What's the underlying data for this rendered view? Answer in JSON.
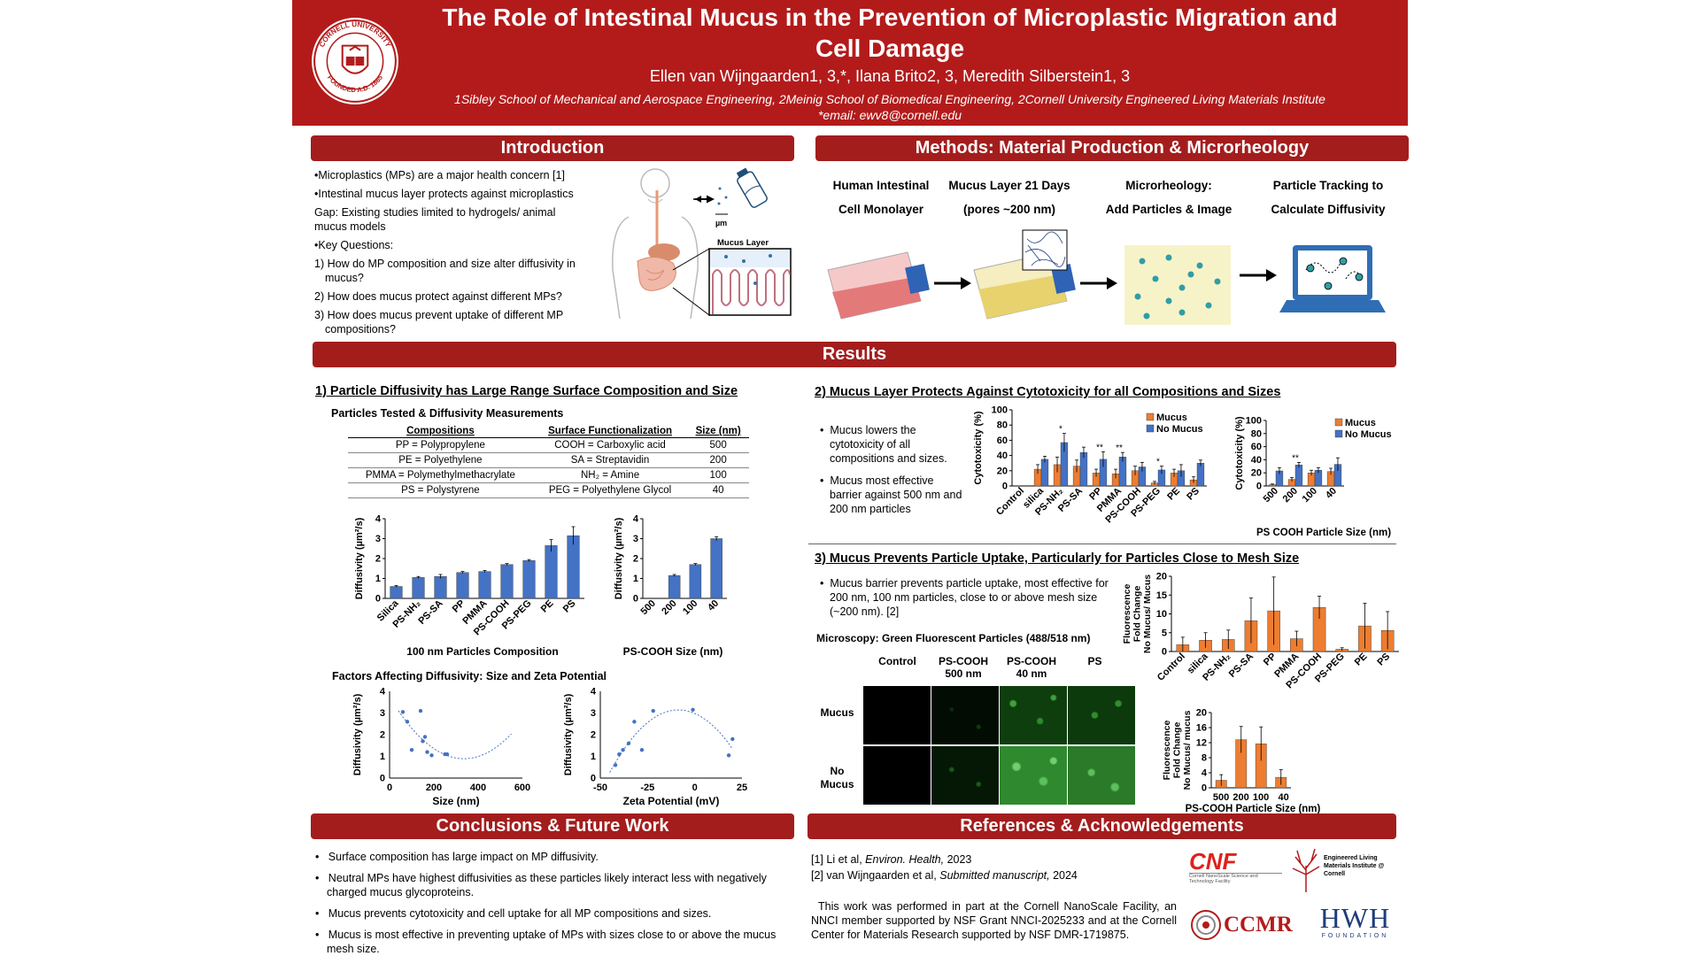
{
  "header": {
    "title_line1": "The Role of Intestinal Mucus in the Prevention of Microplastic Migration and",
    "title_line2": "Cell Damage",
    "authors": "Ellen van Wijngaarden1, 3,*, Ilana Brito2, 3, Meredith Silberstein1, 3",
    "affiliations": "1Sibley School of Mechanical and Aerospace Engineering, 2Meinig School of Biomedical Engineering, 2Cornell University Engineered Living Materials Institute",
    "email": "*email: ewv8@cornell.edu",
    "seal_text_top": "CORNELL UNIVERSITY",
    "seal_text_bottom": "FOUNDED A.D. 1865"
  },
  "intro": {
    "banner": "Introduction",
    "lines": [
      "•Microplastics (MPs) are a major health concern [1]",
      "•Intestinal mucus layer protects against microplastics",
      "Gap: Existing studies limited to hydrogels/ animal",
      "mucus models",
      "•Key Questions:",
      "1) How do MP composition and size alter diffusivity in",
      "mucus?",
      "2) How does mucus protect against different MPs?",
      "3) How does mucus prevent uptake of different MP",
      "compositions?"
    ],
    "figure_um": "µm",
    "figure_mucus_layer": "Mucus Layer"
  },
  "methods": {
    "banner": "Methods: Material Production & Microrheology",
    "steps": [
      {
        "l1": "Human Intestinal",
        "l2": "Cell Monolayer"
      },
      {
        "l1": "Mucus Layer 21 Days",
        "l2": "(pores ~200 nm)"
      },
      {
        "l1": "Microrheology:",
        "l2": "Add Particles & Image"
      },
      {
        "l1": "Particle Tracking to",
        "l2": "Calculate Diffusivity"
      }
    ]
  },
  "results": {
    "banner": "Results",
    "s1": {
      "title": "1) Particle Diffusivity has Large Range Surface Composition and Size",
      "table_title": "Particles Tested & Diffusivity Measurements",
      "headers": [
        "Compositions",
        "Surface Functionalization",
        "Size (nm)"
      ],
      "rows": [
        [
          "PP = Polypropylene",
          "COOH = Carboxylic acid",
          "500"
        ],
        [
          "PE = Polyethylene",
          "SA = Streptavidin",
          "200"
        ],
        [
          "PMMA = Polymethylmethacrylate",
          "NH₂ = Amine",
          "100"
        ],
        [
          "PS = Polystyrene",
          "PEG = Polyethylene Glycol",
          "40"
        ]
      ],
      "factors_title": "Factors Affecting Diffusivity: Size and Zeta Potential"
    },
    "s2": {
      "title": "2) Mucus Layer Protects Against Cytotoxicity for all Compositions and Sizes",
      "bullets": [
        "Mucus lowers the cytotoxicity of all compositions and sizes.",
        "Mucus most effective barrier against 500 nm and 200 nm particles"
      ]
    },
    "s3": {
      "title": "3) Mucus Prevents Particle Uptake, Particularly for Particles Close to Mesh Size",
      "bullet": "Mucus barrier prevents particle uptake, most effective for 200 nm, 100 nm particles, close to or above mesh size (~200 nm). [2]",
      "microscopy_title": "Microscopy: Green Fluorescent Particles (488/518 nm)",
      "col_labels": [
        "Control",
        "PS-COOH\n500 nm",
        "PS-COOH\n40 nm",
        "PS"
      ],
      "row_labels": [
        "Mucus",
        "No\nMucus"
      ]
    }
  },
  "conclusions": {
    "banner": "Conclusions & Future Work",
    "bullets": [
      "Surface composition has large impact on MP diffusivity.",
      "Neutral MPs have highest diffusivities as these particles likely interact less with negatively charged mucus glycoproteins.",
      "Mucus prevents cytotoxicity and cell uptake for all MP compositions and sizes.",
      "Mucus is most effective in preventing uptake of MPs with sizes close to or above the mucus mesh size."
    ]
  },
  "references": {
    "banner": "References & Acknowledgements",
    "ref1_a": "[1] Li et al, ",
    "ref1_b": "Environ. Health,",
    "ref1_c": " 2023",
    "ref2_a": "[2] van Wijngaarden et al, ",
    "ref2_b": "Submitted manuscript,",
    "ref2_c": " 2024",
    "ack": "This work was performed in part at the Cornell NanoScale Facility, an NNCI member supported by NSF Grant NNCI-2025233 and at the Cornell Center for Materials Research supported by NSF DMR-1719875.",
    "logos": {
      "cnf": "CNF",
      "cnf_sub": "Cornell NanoScale Science and Technology Facility",
      "elmi": "Engineered Living Materials Institute @ Cornell",
      "ccmr": "CCMR",
      "hwh": "HWH",
      "hwh_sub": "FOUNDATION"
    }
  },
  "colors": {
    "cornell_red": "#b31b1b",
    "banner_red": "#a31d1d",
    "blue": "#4472c4",
    "orange": "#ed7d31"
  },
  "chart_data": [
    {
      "id": "diffusivity-composition",
      "type": "bar",
      "xlabel": "100 nm Particles Composition",
      "ylabel": "Diffusivity (µm²/s)",
      "ylim": [
        0,
        4
      ],
      "yticks": [
        0,
        1,
        2,
        3,
        4
      ],
      "categories": [
        "Silica",
        "PS-NH₂",
        "PS-SA",
        "PP",
        "PMMA",
        "PS-COOH",
        "PS-PEG",
        "PE",
        "PS"
      ],
      "values": [
        0.6,
        1.05,
        1.1,
        1.3,
        1.35,
        1.7,
        1.9,
        2.65,
        3.15
      ],
      "errors": [
        0.05,
        0.05,
        0.1,
        0.05,
        0.05,
        0.05,
        0.05,
        0.3,
        0.45
      ]
    },
    {
      "id": "diffusivity-size",
      "type": "bar",
      "xlabel": "PS-COOH Size (nm)",
      "ylabel": "Diffusivity (µm²/s)",
      "ylim": [
        0,
        4
      ],
      "yticks": [
        0,
        1,
        2,
        3,
        4
      ],
      "categories": [
        "500",
        "200",
        "100",
        "40"
      ],
      "values": [
        0,
        1.15,
        1.7,
        3.0
      ],
      "errors": [
        0,
        0.05,
        0.05,
        0.1
      ]
    },
    {
      "id": "diffusivity-vs-size",
      "type": "scatter",
      "xlabel": "Size (nm)",
      "ylabel": "Diffusivity (µm²/s)",
      "xlim": [
        0,
        600
      ],
      "ylim": [
        0,
        4
      ],
      "xticks": [
        0,
        200,
        400,
        600
      ],
      "yticks": [
        0,
        1,
        2,
        3,
        4
      ],
      "x": [
        60,
        80,
        100,
        140,
        150,
        160,
        170,
        190,
        250,
        260
      ],
      "y": [
        3.05,
        2.6,
        1.3,
        3.1,
        1.7,
        1.9,
        1.2,
        1.05,
        1.1,
        1.1
      ]
    },
    {
      "id": "diffusivity-vs-zeta",
      "type": "scatter",
      "xlabel": "Zeta Potential (mV)",
      "ylabel": "Diffusivity (µm²/s)",
      "xlim": [
        -50,
        25
      ],
      "ylim": [
        0,
        4
      ],
      "xticks": [
        -50,
        -25,
        0,
        25
      ],
      "yticks": [
        0,
        1,
        2,
        3,
        4
      ],
      "x": [
        -42,
        -40,
        -38,
        -35,
        -32,
        -28,
        -22,
        -1,
        18,
        20
      ],
      "y": [
        0.6,
        1.1,
        1.3,
        1.6,
        2.6,
        1.3,
        3.1,
        3.15,
        1.05,
        1.8
      ]
    },
    {
      "id": "cytotoxicity-composition",
      "type": "bar",
      "ylabel": "Cytotoxicity (%)",
      "ylim": [
        0,
        100
      ],
      "yticks": [
        0,
        20,
        40,
        60,
        80,
        100
      ],
      "categories": [
        "Control",
        "silica",
        "PS-NH₂",
        "PS-SA",
        "PP",
        "PMMA",
        "PS-COOH",
        "PS-PEG",
        "PE",
        "PS"
      ],
      "series": [
        {
          "name": "Mucus",
          "values": [
            0,
            22,
            28,
            26,
            17,
            16,
            20,
            4,
            17,
            8
          ],
          "errors": [
            0,
            6,
            10,
            8,
            5,
            6,
            6,
            2,
            5,
            4
          ]
        },
        {
          "name": "No Mucus",
          "values": [
            0,
            35,
            57,
            44,
            35,
            38,
            25,
            21,
            20,
            30
          ],
          "errors": [
            0,
            4,
            12,
            7,
            10,
            6,
            6,
            5,
            8,
            4
          ]
        }
      ],
      "significance": [
        "",
        "",
        "*",
        "",
        "**",
        "**",
        "",
        "*",
        "",
        ""
      ]
    },
    {
      "id": "cytotoxicity-size",
      "type": "bar",
      "xlabel": "PS COOH Particle Size (nm)",
      "ylabel": "Cytotoxicity (%)",
      "ylim": [
        0,
        100
      ],
      "yticks": [
        0,
        20,
        40,
        60,
        80,
        100
      ],
      "categories": [
        "500",
        "200",
        "100",
        "40"
      ],
      "series": [
        {
          "name": "Mucus",
          "values": [
            2,
            10,
            20,
            22
          ],
          "errors": [
            1,
            3,
            4,
            5
          ]
        },
        {
          "name": "No Mucus",
          "values": [
            23,
            32,
            24,
            33
          ],
          "errors": [
            5,
            4,
            4,
            10
          ]
        }
      ],
      "significance": [
        "",
        "**",
        "",
        ""
      ]
    },
    {
      "id": "fold-change-composition",
      "type": "bar",
      "ylabel": "Fluorescence Fold Change No Mucus/ Mucus",
      "ylim": [
        0,
        20
      ],
      "yticks": [
        0,
        5,
        10,
        15,
        20
      ],
      "categories": [
        "Control",
        "silica",
        "PS-NH₂",
        "PS-SA",
        "PP",
        "PMMA",
        "PS-COOH",
        "PS-PEG",
        "PE",
        "PS"
      ],
      "values": [
        1.8,
        3,
        3.2,
        8.2,
        10.8,
        3.4,
        11.7,
        0.6,
        6.8,
        5.6
      ],
      "errors": [
        2,
        2,
        2.5,
        6,
        9,
        2,
        3,
        0.4,
        6,
        5
      ]
    },
    {
      "id": "fold-change-size",
      "type": "bar",
      "xlabel": "PS-COOH Particle Size (nm)",
      "ylabel": "Fluorescence Fold Change No Mucus/ mucus",
      "ylim": [
        0,
        20
      ],
      "yticks": [
        0,
        4,
        8,
        12,
        16,
        20
      ],
      "categories": [
        "500",
        "200",
        "100",
        "40"
      ],
      "values": [
        2,
        12.8,
        11.7,
        2.8
      ],
      "errors": [
        1.5,
        3.5,
        4.5,
        2
      ]
    }
  ]
}
